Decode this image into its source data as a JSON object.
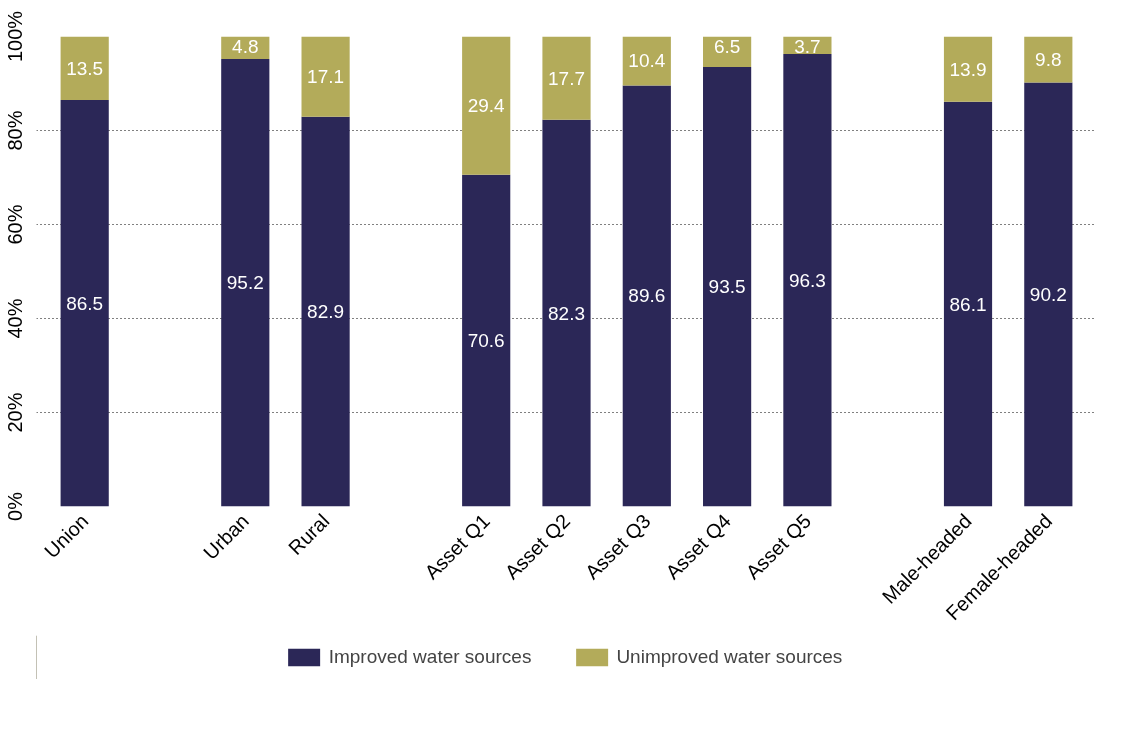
{
  "chart_data": {
    "type": "bar",
    "stacked": true,
    "data_labels": true,
    "legend": "bottom",
    "grid": "y",
    "categories": [
      "Union",
      null,
      "Urban",
      "Rural",
      null,
      "Asset Q1",
      "Asset Q2",
      "Asset Q3",
      "Asset Q4",
      "Asset Q5",
      null,
      "Male-headed",
      "Female-headed"
    ],
    "ylim": [
      0,
      100
    ],
    "yticks": [
      {
        "value": 0,
        "label": "0%"
      },
      {
        "value": 20,
        "label": "20%"
      },
      {
        "value": 40,
        "label": "40%"
      },
      {
        "value": 60,
        "label": "60%"
      },
      {
        "value": 80,
        "label": "80%"
      },
      {
        "value": 100,
        "label": "100%"
      }
    ],
    "series": [
      {
        "name": "Improved water sources",
        "color": "#2b2757",
        "values": [
          86.5,
          null,
          95.2,
          82.9,
          null,
          70.6,
          82.3,
          89.6,
          93.5,
          96.3,
          null,
          86.1,
          90.2
        ]
      },
      {
        "name": "Unimproved water sources",
        "color": "#b3ab5a",
        "values": [
          13.5,
          null,
          4.8,
          17.1,
          null,
          29.4,
          17.7,
          10.4,
          6.5,
          3.7,
          null,
          13.9,
          9.8
        ]
      }
    ]
  }
}
